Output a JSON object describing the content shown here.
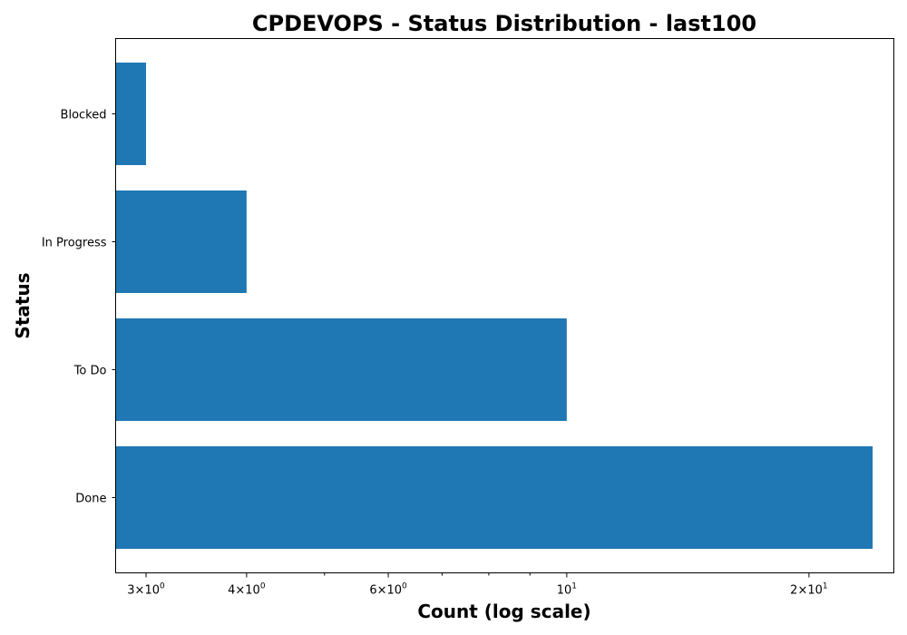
{
  "chart_data": {
    "type": "bar",
    "orientation": "horizontal",
    "title": "CPDEVOPS - Status Distribution - last100",
    "xlabel": "Count (log scale)",
    "ylabel": "Status",
    "x_scale": "log",
    "xlim": [
      2.75,
      25.5
    ],
    "grid": false,
    "categories": [
      "Done",
      "To Do",
      "In Progress",
      "Blocked"
    ],
    "values": [
      24,
      10,
      4,
      3
    ],
    "bar_color": "#1f77b4",
    "x_major_ticks": [
      {
        "value": 3,
        "mantissa": "3",
        "exponent": "0"
      },
      {
        "value": 4,
        "mantissa": "4",
        "exponent": "0"
      },
      {
        "value": 6,
        "mantissa": "6",
        "exponent": "0"
      },
      {
        "value": 10,
        "mantissa": "",
        "exponent": "1"
      },
      {
        "value": 20,
        "mantissa": "2",
        "exponent": "1"
      }
    ],
    "x_minor_ticks": [
      5,
      7,
      8,
      9
    ]
  }
}
